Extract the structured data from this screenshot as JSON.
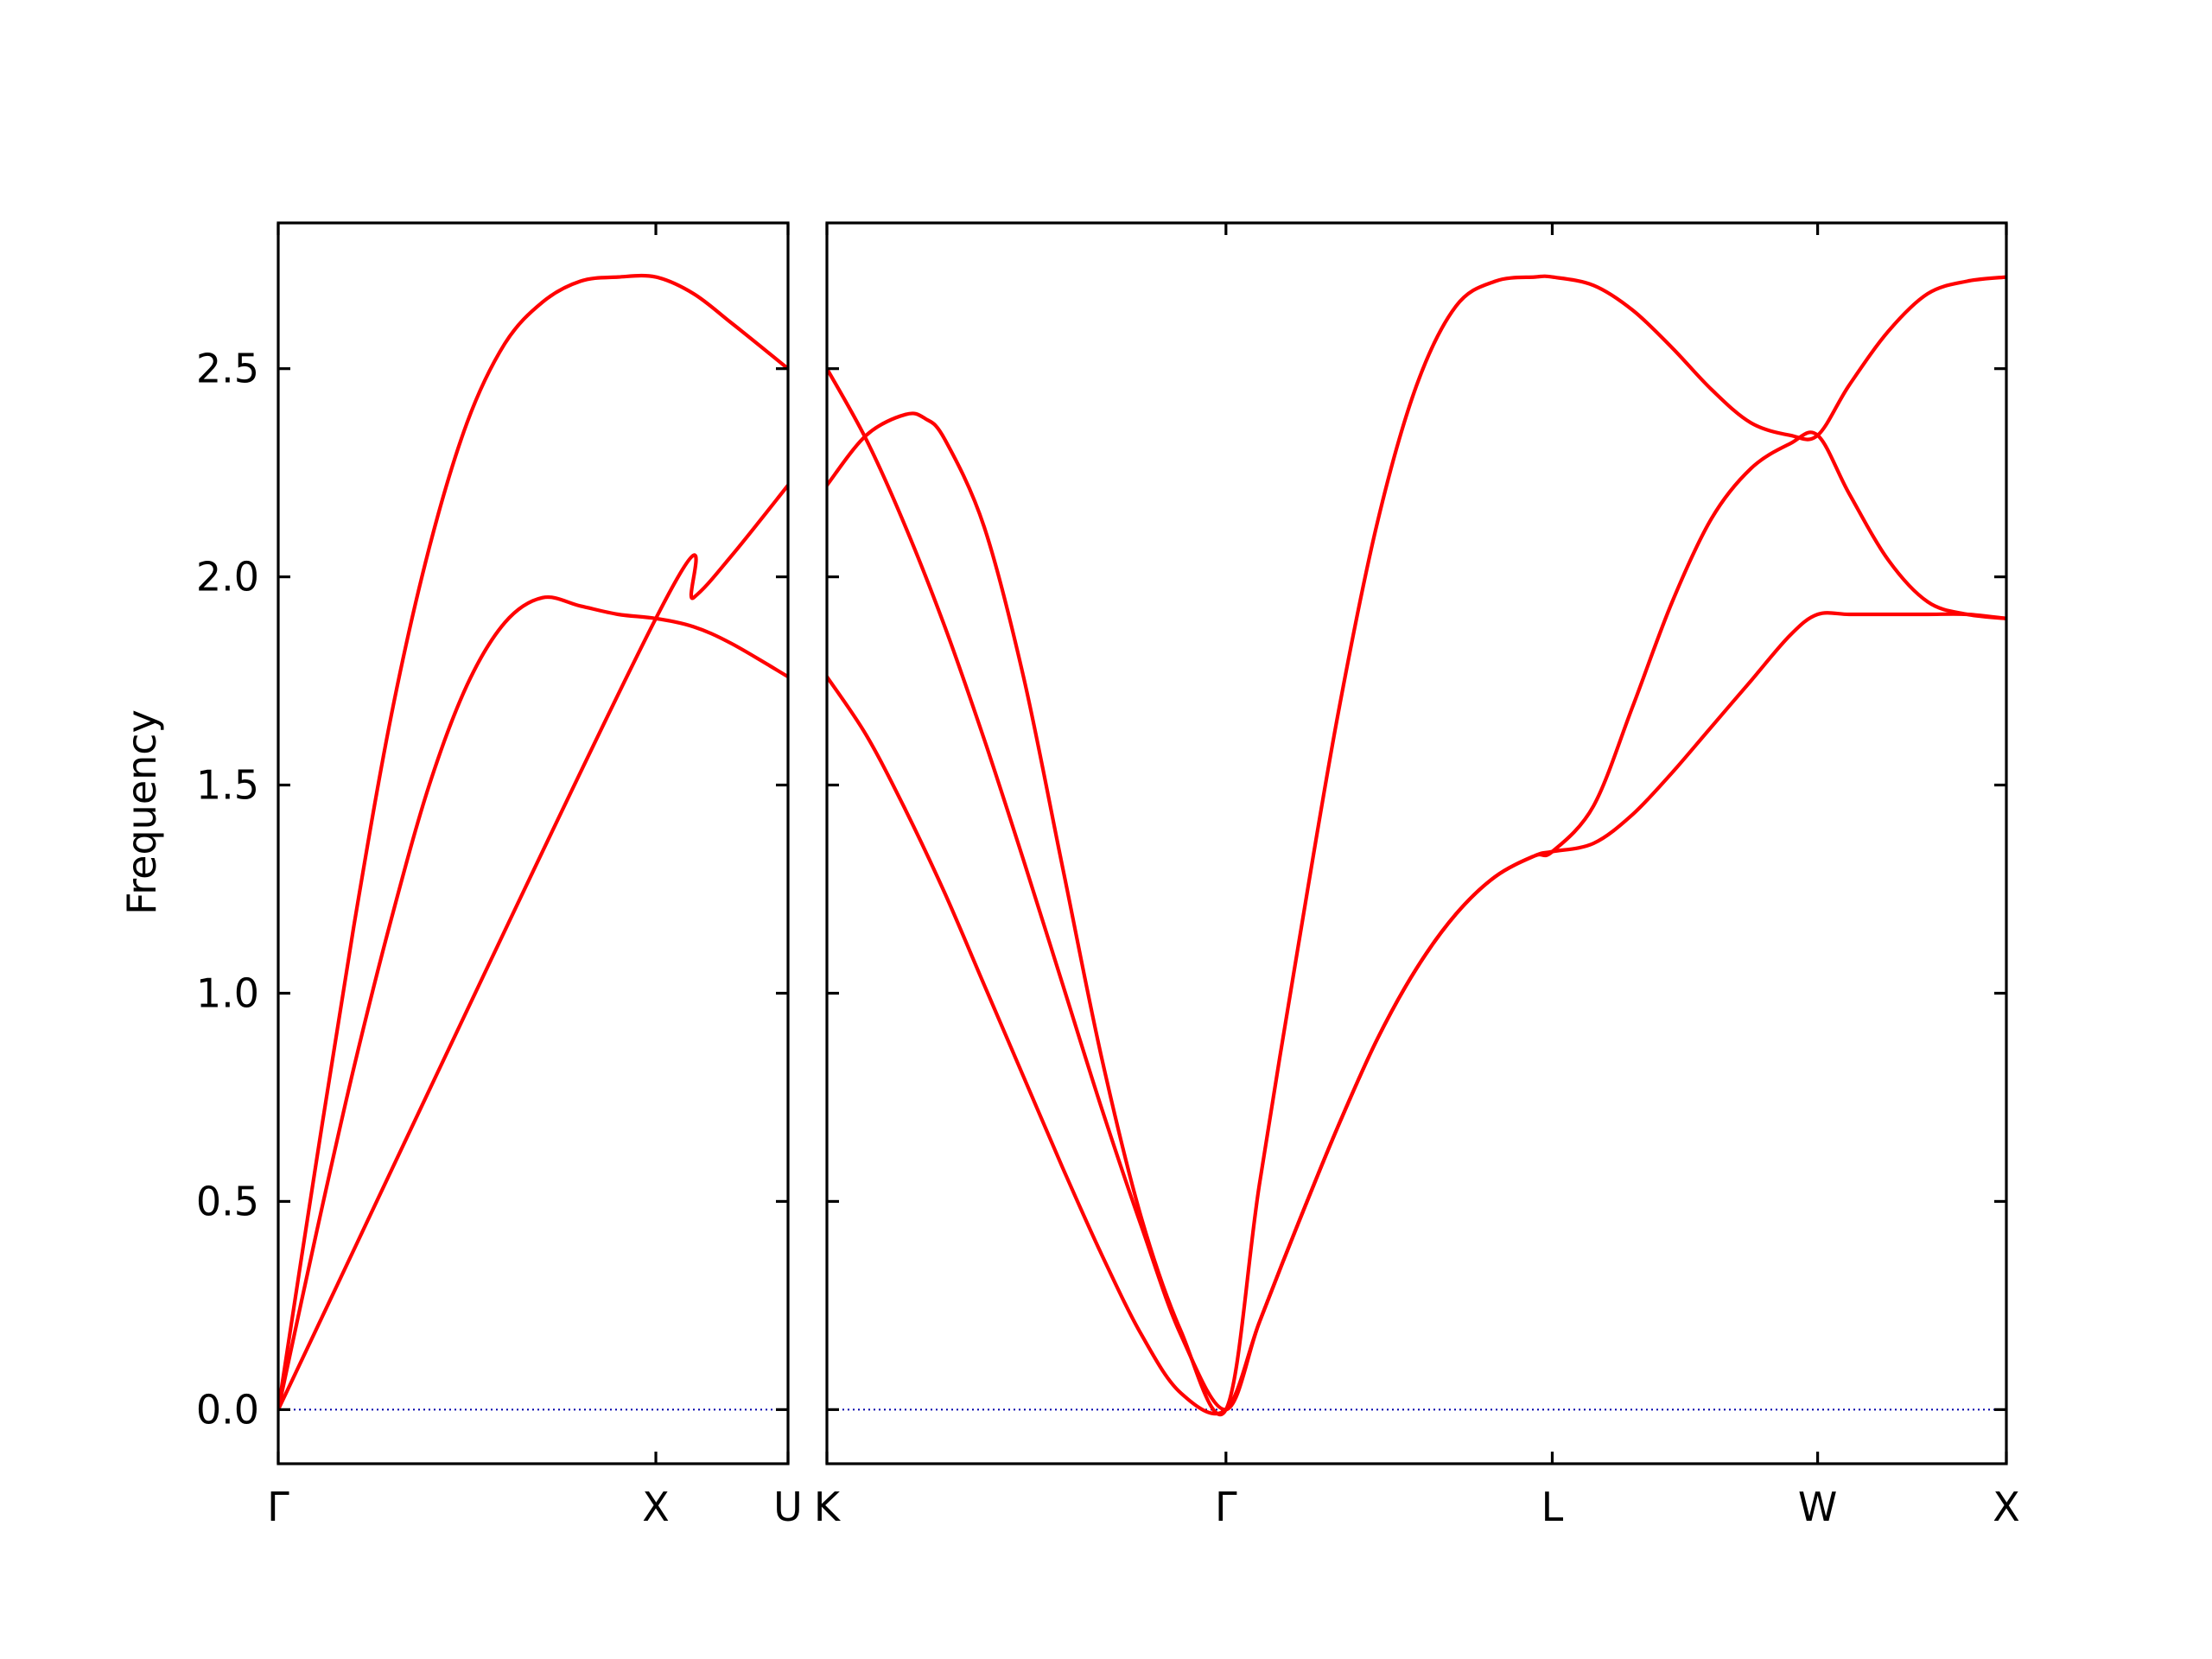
{
  "chart_data": {
    "type": "line",
    "ylabel": "Frequency",
    "ylim": [
      -0.13,
      2.85
    ],
    "yticks": [
      "0.0",
      "0.5",
      "1.0",
      "1.5",
      "2.0",
      "2.5"
    ],
    "grid": false,
    "legend": "none",
    "line_color": "#ff0000",
    "zero_line_color": "#0000aa",
    "panels": [
      {
        "name": "panel-gamma-x-u",
        "xlim": [
          0,
          1.35
        ],
        "xticks": [
          {
            "x": 0,
            "label": "Γ"
          },
          {
            "x": 1.0,
            "label": "X"
          },
          {
            "x": 1.35,
            "label": "U"
          }
        ],
        "series": [
          {
            "x": [
              0,
              0.1,
              0.2,
              0.3,
              0.4,
              0.5,
              0.6,
              0.7,
              0.8,
              0.9,
              1.0,
              1.1,
              1.2,
              1.35
            ],
            "y": [
              0,
              0.42,
              0.82,
              1.18,
              1.5,
              1.74,
              1.89,
              1.95,
              1.93,
              1.91,
              1.9,
              1.88,
              1.84,
              1.76
            ]
          },
          {
            "x": [
              0,
              1.0,
              1.1,
              1.2,
              1.35
            ],
            "y": [
              0,
              1.9,
              1.95,
              2.05,
              2.22
            ]
          },
          {
            "x": [
              0,
              0.1,
              0.2,
              0.3,
              0.4,
              0.5,
              0.6,
              0.7,
              0.8,
              0.9,
              1.0,
              1.1,
              1.2,
              1.35
            ],
            "y": [
              0,
              0.59,
              1.16,
              1.67,
              2.07,
              2.37,
              2.56,
              2.66,
              2.71,
              2.72,
              2.72,
              2.68,
              2.61,
              2.5
            ]
          }
        ]
      },
      {
        "name": "panel-k-gamma-l-w-x",
        "xlim": [
          0,
          3.0
        ],
        "xticks": [
          {
            "x": 0,
            "label": "K"
          },
          {
            "x": 1.015,
            "label": "Γ"
          },
          {
            "x": 1.845,
            "label": "L"
          },
          {
            "x": 2.52,
            "label": "W"
          },
          {
            "x": 3.0,
            "label": "X"
          }
        ],
        "series": [
          {
            "x": [
              0,
              0.1,
              0.2,
              0.3,
              0.4,
              0.5,
              0.6,
              0.7,
              0.8,
              0.9,
              1.015,
              1.1,
              1.2,
              1.3,
              1.4,
              1.5,
              1.6,
              1.7,
              1.8,
              1.845,
              1.95,
              2.05,
              2.15,
              2.25,
              2.35,
              2.45,
              2.52,
              2.6,
              2.7,
              2.8,
              2.9,
              3.0
            ],
            "y": [
              1.76,
              1.62,
              1.44,
              1.24,
              1.02,
              0.8,
              0.58,
              0.37,
              0.18,
              0.04,
              0,
              0.21,
              0.45,
              0.68,
              0.89,
              1.06,
              1.19,
              1.28,
              1.33,
              1.34,
              1.36,
              1.43,
              1.53,
              1.64,
              1.75,
              1.86,
              1.91,
              1.91,
              1.91,
              1.91,
              1.91,
              1.9
            ]
          },
          {
            "x": [
              0,
              0.1,
              0.2,
              0.3,
              0.4,
              0.5,
              0.6,
              0.7,
              0.8,
              0.9,
              1.015,
              1.1,
              1.2,
              1.3,
              1.4,
              1.5,
              1.6,
              1.7,
              1.8,
              1.845,
              1.95,
              2.05,
              2.15,
              2.25,
              2.35,
              2.45,
              2.52,
              2.6,
              2.7,
              2.8,
              2.9,
              3.0
            ],
            "y": [
              2.5,
              2.33,
              2.12,
              1.88,
              1.61,
              1.32,
              1.02,
              0.72,
              0.44,
              0.18,
              0,
              0.21,
              0.45,
              0.68,
              0.89,
              1.06,
              1.19,
              1.28,
              1.33,
              1.34,
              1.45,
              1.69,
              1.94,
              2.14,
              2.26,
              2.32,
              2.34,
              2.2,
              2.04,
              1.94,
              1.91,
              1.9
            ]
          },
          {
            "x": [
              0,
              0.1,
              0.2,
              0.25,
              0.3,
              0.4,
              0.5,
              0.6,
              0.7,
              0.8,
              0.9,
              1.015,
              1.1,
              1.2,
              1.3,
              1.4,
              1.5,
              1.6,
              1.7,
              1.8,
              1.845,
              1.95,
              2.05,
              2.15,
              2.25,
              2.35,
              2.45,
              2.52,
              2.6,
              2.7,
              2.8,
              2.9,
              3.0
            ],
            "y": [
              2.22,
              2.34,
              2.39,
              2.38,
              2.33,
              2.12,
              1.76,
              1.3,
              0.84,
              0.46,
              0.19,
              0,
              0.54,
              1.12,
              1.67,
              2.13,
              2.46,
              2.65,
              2.71,
              2.72,
              2.72,
              2.7,
              2.64,
              2.55,
              2.45,
              2.37,
              2.34,
              2.34,
              2.46,
              2.59,
              2.68,
              2.71,
              2.72
            ]
          }
        ]
      }
    ]
  }
}
